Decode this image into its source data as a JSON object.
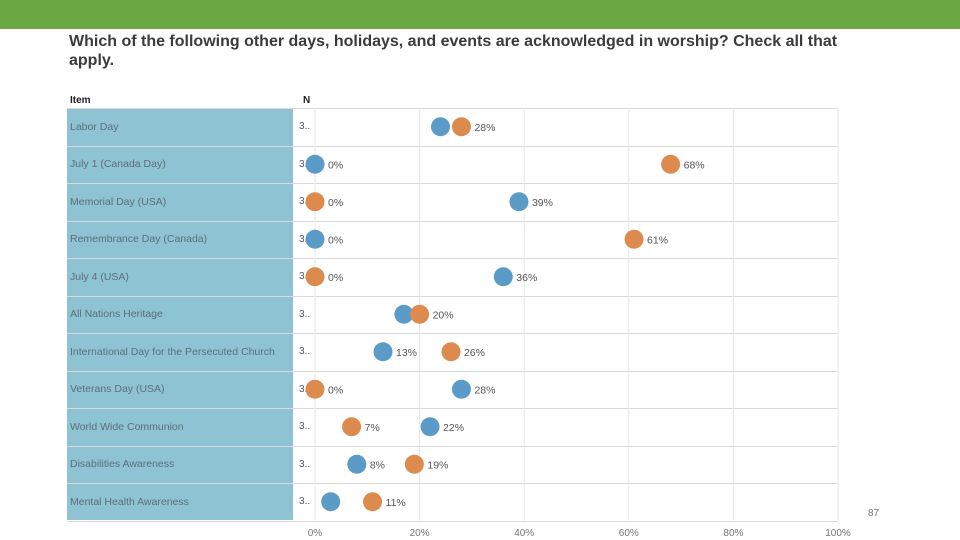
{
  "colors": {
    "top_bar": "#6aa843",
    "label_column": "#8ec3d3",
    "series_blue": "#5b9bc8",
    "series_orange": "#dc8a4e"
  },
  "title": "Which of the following other days, holidays, and events are acknowledged in worship? Check all that apply.",
  "header": {
    "item": "Item",
    "n": "N"
  },
  "page_number": "87",
  "chart_data": {
    "type": "scatter",
    "orientation": "horizontal dot plot",
    "xlim": [
      0,
      100
    ],
    "x_unit": "%",
    "x_ticks": [
      "0%",
      "20%",
      "40%",
      "60%",
      "80%",
      "100%"
    ],
    "grid": true,
    "categories": [
      "Labor Day",
      "July 1 (Canada Day)",
      "Memorial Day (USA)",
      "Remembrance Day (Canada)",
      "July 4 (USA)",
      "All Nations Heritage",
      "International Day for the Persecuted Church",
      "Veterans Day (USA)",
      "World Wide Communion",
      "Disabilities Awareness",
      "Mental Health Awareness"
    ],
    "n_values": [
      "3..",
      "3..",
      "3..",
      "3..",
      "3..",
      "3..",
      "3..",
      "3..",
      "3..",
      "3..",
      "3.."
    ],
    "series": [
      {
        "color": "#5b9bc8",
        "values": [
          24,
          0,
          39,
          0,
          36,
          17,
          13,
          28,
          22,
          8,
          3
        ],
        "labels": [
          "",
          "0%",
          "39%",
          "0%",
          "36%",
          "",
          "13%",
          "28%",
          "22%",
          "8%",
          ""
        ]
      },
      {
        "color": "#dc8a4e",
        "values": [
          28,
          68,
          0,
          61,
          0,
          20,
          26,
          0,
          7,
          19,
          11
        ],
        "labels": [
          "28%",
          "68%",
          "0%",
          "61%",
          "0%",
          "20%",
          "26%",
          "0%",
          "7%",
          "19%",
          "11%"
        ]
      }
    ]
  }
}
